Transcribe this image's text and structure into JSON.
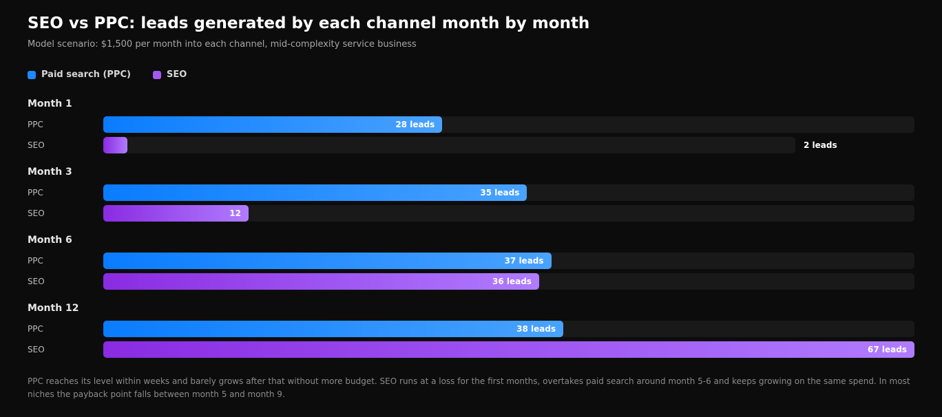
{
  "header": {
    "title": "SEO vs PPC: leads generated by each channel month by month",
    "subtitle": "Model scenario: $1,500 per month into each channel, mid-complexity service business"
  },
  "legend": [
    {
      "label": "Paid search (PPC)",
      "color": "#1e88ff"
    },
    {
      "label": "SEO",
      "color": "#a259f0"
    }
  ],
  "colors": {
    "ppc_start": "#0a7cff",
    "ppc_end": "#49a2ff",
    "seo_start": "#8a2be2",
    "seo_end": "#b07cff",
    "track": "#191919",
    "background": "#0c0c0c"
  },
  "chart_data": {
    "type": "bar",
    "orientation": "horizontal",
    "xlim": [
      0,
      67
    ],
    "groups": [
      {
        "label": "Month 1",
        "rows": [
          {
            "series": "PPC",
            "label": "PPC",
            "value": 28,
            "value_label": "28 leads"
          },
          {
            "series": "SEO",
            "label": "SEO",
            "value": 2,
            "value_label": "2 leads"
          }
        ]
      },
      {
        "label": "Month 3",
        "rows": [
          {
            "series": "PPC",
            "label": "PPC",
            "value": 35,
            "value_label": "35 leads"
          },
          {
            "series": "SEO",
            "label": "SEO",
            "value": 12,
            "value_label": "12"
          }
        ]
      },
      {
        "label": "Month 6",
        "rows": [
          {
            "series": "PPC",
            "label": "PPC",
            "value": 37,
            "value_label": "37 leads"
          },
          {
            "series": "SEO",
            "label": "SEO",
            "value": 36,
            "value_label": "36 leads"
          }
        ]
      },
      {
        "label": "Month 12",
        "rows": [
          {
            "series": "PPC",
            "label": "PPC",
            "value": 38,
            "value_label": "38 leads"
          },
          {
            "series": "SEO",
            "label": "SEO",
            "value": 67,
            "value_label": "67 leads"
          }
        ]
      }
    ]
  },
  "footnote": "PPC reaches its level within weeks and barely grows after that without more budget. SEO runs at a loss for the first months, overtakes paid search around month 5-6 and keeps growing on the same spend. In most niches the payback point falls between month 5 and month 9."
}
